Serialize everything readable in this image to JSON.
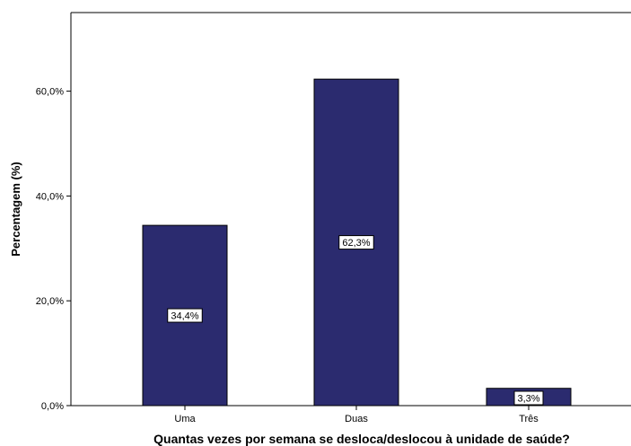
{
  "chart_data": {
    "type": "bar",
    "categories": [
      "Uma",
      "Duas",
      "Três"
    ],
    "values": [
      34.4,
      62.3,
      3.3
    ],
    "data_labels": [
      "34,4%",
      "62,3%",
      "3,3%"
    ],
    "title": "",
    "xlabel": "Quantas vezes por semana se desloca/deslocou à unidade de saúde?",
    "ylabel": "Percentagem (%)",
    "ylim": [
      0,
      75
    ],
    "yticks": [
      0,
      20,
      40,
      60
    ],
    "ytick_labels": [
      "0,0%",
      "20,0%",
      "40,0%",
      "60,0%"
    ],
    "grid": false,
    "legend": "none",
    "colors": {
      "bar_fill": "#2b2b6f",
      "bar_stroke": "#000000",
      "axis": "#000000",
      "label_box_fill": "#ffffff"
    }
  }
}
